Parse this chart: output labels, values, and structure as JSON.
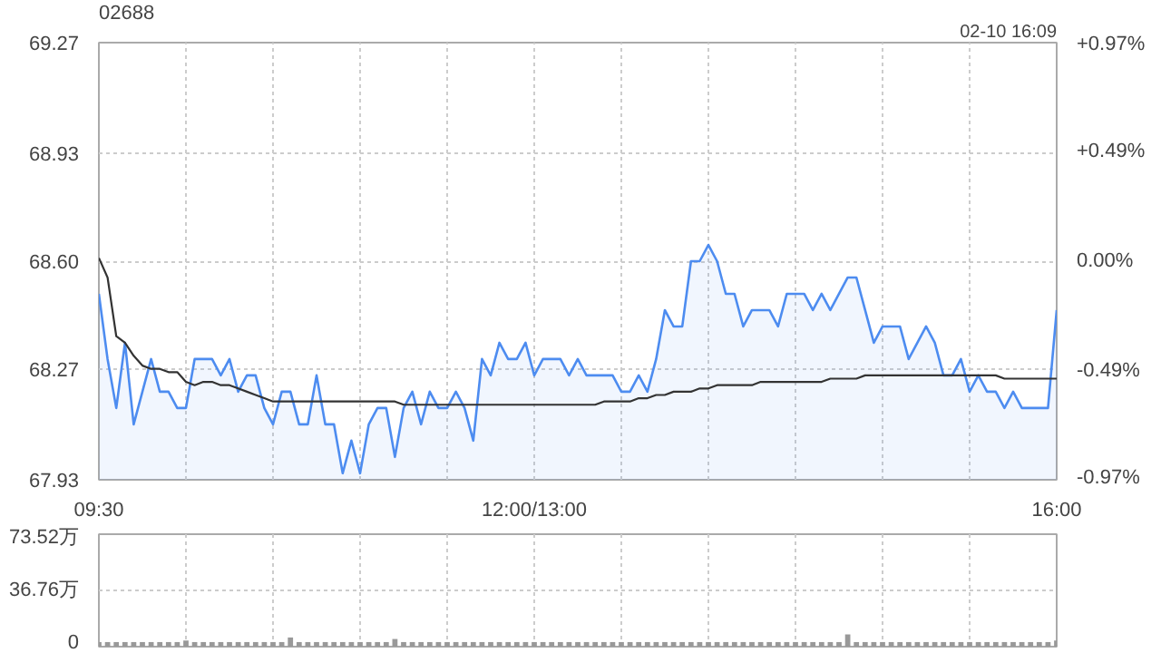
{
  "chart_data": [
    {
      "type": "area",
      "title": "02688",
      "annotations": [
        "02-10 16:09"
      ],
      "categories": [
        "09:30",
        null,
        null,
        null,
        null,
        null,
        null,
        null,
        null,
        null,
        null,
        null,
        null,
        null,
        null,
        null,
        null,
        null,
        null,
        null,
        null,
        null,
        null,
        null,
        null,
        null,
        null,
        null,
        null,
        null,
        null,
        null,
        null,
        null,
        null,
        null,
        null,
        null,
        null,
        null,
        null,
        null,
        null,
        null,
        null,
        null,
        null,
        null,
        null,
        null,
        "12:00/13:00",
        null,
        null,
        null,
        null,
        null,
        null,
        null,
        null,
        null,
        null,
        null,
        null,
        null,
        null,
        null,
        null,
        null,
        null,
        null,
        null,
        null,
        null,
        null,
        null,
        null,
        null,
        null,
        null,
        null,
        null,
        null,
        null,
        null,
        null,
        null,
        null,
        null,
        null,
        null,
        null,
        null,
        null,
        null,
        null,
        null,
        null,
        null,
        null,
        null,
        null,
        null,
        null,
        null,
        null,
        null,
        null,
        null,
        null,
        null,
        "16:00"
      ],
      "ylim": [
        67.93,
        69.27
      ],
      "yticks": [
        67.93,
        68.27,
        {
          "value": 68.6,
          "label": "68.60"
        },
        68.93,
        69.27
      ],
      "y2lim": [
        -0.977,
        0.977
      ],
      "y2ticks": [
        {
          "value": -0.97,
          "label": "-0.97%"
        },
        {
          "value": -0.49,
          "label": "-0.49%"
        },
        {
          "value": 0,
          "label": "0.00%"
        },
        {
          "value": 0.49,
          "label": "+0.49%"
        },
        {
          "value": 0.97,
          "label": "+0.97%"
        }
      ],
      "grid": true,
      "marker": "none",
      "line_style": "solid",
      "series": [
        {
          "type": "area",
          "color": "#4d8cf0",
          "values": [
            68.5,
            68.3,
            68.15,
            68.35,
            68.1,
            68.2,
            68.3,
            68.2,
            68.2,
            68.15,
            68.15,
            68.3,
            68.3,
            68.3,
            68.25,
            68.3,
            68.2,
            68.25,
            68.25,
            68.15,
            68.1,
            68.2,
            68.2,
            68.1,
            68.1,
            68.25,
            68.1,
            68.1,
            67.95,
            68.05,
            67.95,
            68.1,
            68.15,
            68.15,
            68.0,
            68.15,
            68.2,
            68.1,
            68.2,
            68.15,
            68.15,
            68.2,
            68.15,
            68.05,
            68.3,
            68.25,
            68.35,
            68.3,
            68.3,
            68.35,
            68.25,
            68.3,
            68.3,
            68.3,
            68.25,
            68.3,
            68.25,
            68.25,
            68.25,
            68.25,
            68.2,
            68.2,
            68.25,
            68.2,
            68.3,
            68.45,
            68.4,
            68.4,
            68.6,
            68.6,
            68.65,
            68.6,
            68.5,
            68.5,
            68.4,
            68.45,
            68.45,
            68.45,
            68.4,
            68.5,
            68.5,
            68.5,
            68.45,
            68.5,
            68.45,
            68.5,
            68.55,
            68.55,
            68.45,
            68.35,
            68.4,
            68.4,
            68.4,
            68.3,
            68.35,
            68.4,
            68.35,
            68.25,
            68.25,
            68.3,
            68.2,
            68.25,
            68.2,
            68.2,
            68.15,
            68.2,
            68.15,
            68.15,
            68.15,
            68.15,
            68.45
          ]
        },
        {
          "type": "line",
          "color": "#333333",
          "values": [
            68.61,
            68.55,
            68.37,
            68.35,
            68.31,
            68.28,
            68.27,
            68.27,
            68.26,
            68.26,
            68.23,
            68.22,
            68.23,
            68.23,
            68.22,
            68.22,
            68.21,
            68.2,
            68.19,
            68.18,
            68.17,
            68.17,
            68.17,
            68.17,
            68.17,
            68.17,
            68.17,
            68.17,
            68.17,
            68.17,
            68.17,
            68.17,
            68.17,
            68.17,
            68.17,
            68.16,
            68.16,
            68.16,
            68.16,
            68.16,
            68.16,
            68.16,
            68.16,
            68.16,
            68.16,
            68.16,
            68.16,
            68.16,
            68.16,
            68.16,
            68.16,
            68.16,
            68.16,
            68.16,
            68.16,
            68.16,
            68.16,
            68.16,
            68.17,
            68.17,
            68.17,
            68.17,
            68.18,
            68.18,
            68.19,
            68.19,
            68.2,
            68.2,
            68.2,
            68.21,
            68.21,
            68.22,
            68.22,
            68.22,
            68.22,
            68.22,
            68.23,
            68.23,
            68.23,
            68.23,
            68.23,
            68.23,
            68.23,
            68.23,
            68.24,
            68.24,
            68.24,
            68.24,
            68.25,
            68.25,
            68.25,
            68.25,
            68.25,
            68.25,
            68.25,
            68.25,
            68.25,
            68.25,
            68.25,
            68.25,
            68.25,
            68.25,
            68.25,
            68.25,
            68.24,
            68.24,
            68.24,
            68.24,
            68.24,
            68.24,
            68.24
          ]
        }
      ]
    },
    {
      "type": "bar",
      "categories": [
        null,
        null,
        null,
        null,
        null,
        null,
        null,
        null,
        null,
        null,
        null,
        null,
        null,
        null,
        null,
        null,
        null,
        null,
        null,
        null,
        null,
        null,
        null,
        null,
        null,
        null,
        null,
        null,
        null,
        null,
        null,
        null,
        null,
        null,
        null,
        null,
        null,
        null,
        null,
        null,
        null,
        null,
        null,
        null,
        null,
        null,
        null,
        null,
        null,
        null,
        null,
        null,
        null,
        null,
        null,
        null,
        null,
        null,
        null,
        null,
        null,
        null,
        null,
        null,
        null,
        null,
        null,
        null,
        null,
        null,
        null,
        null,
        null,
        null,
        null,
        null,
        null,
        null,
        null,
        null,
        null,
        null,
        null,
        null,
        null,
        null,
        null,
        null,
        null,
        null,
        null,
        null,
        null,
        null,
        null,
        null,
        null,
        null,
        null,
        null,
        null,
        null,
        null,
        null,
        null,
        null,
        null,
        null,
        null,
        null,
        null
      ],
      "ylim": [
        0,
        73.52
      ],
      "yticks": [
        {
          "value": 0,
          "label": "0"
        },
        {
          "value": 36.76,
          "label": "36.76万"
        },
        {
          "value": 73.52,
          "label": "73.52万"
        }
      ],
      "tick_labels": "y",
      "grid": true,
      "color": "#999999",
      "values": [
        3,
        3,
        3,
        3,
        3,
        3,
        3,
        3,
        3,
        3,
        4,
        3,
        3,
        3,
        3,
        3,
        3,
        3,
        3,
        3,
        3,
        3,
        6,
        3,
        3,
        3,
        3,
        3,
        3,
        3,
        3,
        3,
        3,
        3,
        5,
        3,
        3,
        3,
        3,
        3,
        3,
        3,
        3,
        3,
        3,
        3,
        3,
        3,
        3,
        3,
        3,
        3,
        3,
        3,
        3,
        3,
        3,
        3,
        3,
        3,
        3,
        3,
        3,
        3,
        3,
        3,
        3,
        3,
        3,
        3,
        3,
        3,
        3,
        3,
        3,
        3,
        3,
        3,
        3,
        3,
        3,
        3,
        3,
        3,
        3,
        3,
        8,
        3,
        3,
        3,
        3,
        3,
        3,
        3,
        3,
        3,
        3,
        3,
        3,
        3,
        3,
        3,
        3,
        3,
        3,
        3,
        3,
        3,
        3,
        3,
        4
      ]
    }
  ]
}
